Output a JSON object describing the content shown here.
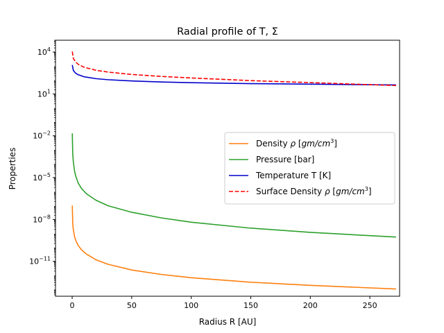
{
  "chart_data": {
    "type": "line",
    "title": "Radial profile of T, Σ",
    "xlabel": "Radius R [AU]",
    "ylabel": "Properties",
    "xlim": [
      -14,
      275
    ],
    "ylim_log10": [
      -13.5,
      4.85
    ],
    "yscale": "log",
    "grid": false,
    "legend_position": "center-right",
    "x_ticks": [
      0,
      50,
      100,
      150,
      200,
      250
    ],
    "x_tick_labels": [
      "0",
      "50",
      "100",
      "150",
      "200",
      "250"
    ],
    "y_ticks_log10": [
      4,
      1,
      -2,
      -5,
      -8,
      -11
    ],
    "y_tick_labels": [
      {
        "base": "10",
        "exp": "4"
      },
      {
        "base": "10",
        "exp": "1"
      },
      {
        "base": "10",
        "exp": "−2"
      },
      {
        "base": "10",
        "exp": "−5"
      },
      {
        "base": "10",
        "exp": "−8"
      },
      {
        "base": "10",
        "exp": "−11"
      }
    ],
    "series": [
      {
        "name": "Density ρ [gm/cm³]",
        "label_parts": {
          "prefix": "Density ",
          "symbol": "ρ",
          "mid": " [",
          "unit": "gm/cm",
          "exp": "3",
          "suffix": "]"
        },
        "color": "#ff7f0e",
        "dash": "solid",
        "x": [
          0.1,
          0.5,
          1,
          2,
          3,
          5,
          8,
          12,
          20,
          30,
          50,
          75,
          100,
          150,
          200,
          272
        ],
        "y": [
          1e-07,
          5e-09,
          1.8e-09,
          6e-10,
          3.2e-10,
          1.4e-10,
          6.5e-11,
          3.3e-11,
          1.3e-11,
          6.2e-12,
          2.4e-12,
          1.15e-12,
          6.7e-13,
          3.2e-13,
          1.9e-13,
          1.05e-13
        ]
      },
      {
        "name": "Pressure [bar]",
        "label_parts": {
          "prefix": "Pressure [bar]",
          "symbol": "",
          "mid": "",
          "unit": "",
          "exp": "",
          "suffix": ""
        },
        "color": "#2ca02c",
        "dash": "solid",
        "x": [
          0.1,
          0.5,
          1,
          2,
          3,
          5,
          8,
          12,
          20,
          30,
          50,
          75,
          100,
          150,
          200,
          272
        ],
        "y": [
          0.015,
          0.0005,
          0.00013,
          3e-05,
          1.3e-05,
          4.2e-06,
          1.6e-06,
          7e-07,
          2.4e-07,
          9.8e-08,
          3.3e-08,
          1.3e-08,
          6.4e-09,
          2.4e-09,
          1.2e-09,
          5.5e-10
        ]
      },
      {
        "name": "Temperature T [K]",
        "label_parts": {
          "prefix": "Temperature T [K]",
          "symbol": "",
          "mid": "",
          "unit": "",
          "exp": "",
          "suffix": ""
        },
        "color": "#0000cc",
        "dash": "solid",
        "x": [
          0.1,
          1,
          3,
          5,
          10,
          20,
          30,
          50,
          75,
          100,
          150,
          200,
          272
        ],
        "y": [
          1200,
          480,
          300,
          240,
          170,
          125,
          105,
          85,
          72,
          64,
          55,
          50,
          44
        ]
      },
      {
        "name": "Surface Density ρ [gm/cm³]",
        "label_parts": {
          "prefix": "Surface Density ",
          "symbol": "ρ",
          "mid": " [",
          "unit": "gm/cm",
          "exp": "3",
          "suffix": "]"
        },
        "color": "#ff0000",
        "dash": "dashed",
        "x": [
          0.1,
          1,
          3,
          5,
          10,
          20,
          30,
          50,
          75,
          100,
          150,
          200,
          272
        ],
        "y": [
          11000,
          3500,
          1900,
          1350,
          820,
          500,
          370,
          250,
          180,
          140,
          90,
          65,
          40
        ]
      }
    ]
  }
}
